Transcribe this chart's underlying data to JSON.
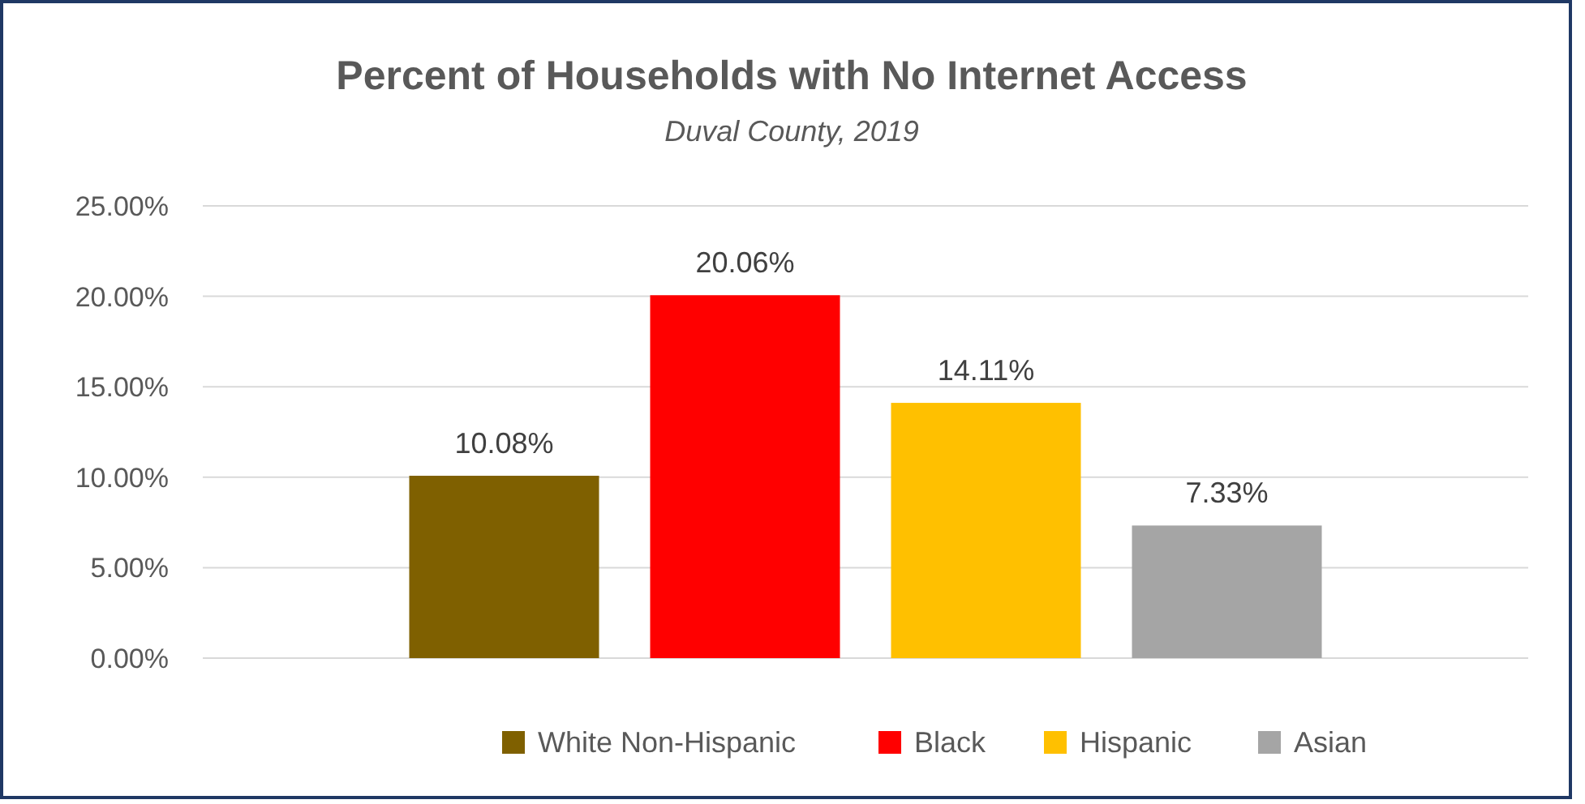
{
  "chart_data": {
    "type": "bar",
    "title": "Percent of Households with No Internet Access",
    "subtitle": "Duval County, 2019",
    "categories": [
      null
    ],
    "series": [
      {
        "name": "White Non-Hispanic",
        "color": "#7f6000",
        "values": [
          10.08
        ],
        "value_labels": [
          "10.08%"
        ]
      },
      {
        "name": "Black",
        "color": "#ff0000",
        "values": [
          20.06
        ],
        "value_labels": [
          "20.06%"
        ]
      },
      {
        "name": "Hispanic",
        "color": "#ffc000",
        "values": [
          14.11
        ],
        "value_labels": [
          "14.11%"
        ]
      },
      {
        "name": "Asian",
        "color": "#a5a5a5",
        "values": [
          7.33
        ],
        "value_labels": [
          "7.33%"
        ]
      }
    ],
    "ylim": [
      0,
      25
    ],
    "yticks": [
      {
        "value": 0,
        "label": "0.00%"
      },
      {
        "value": 5,
        "label": "5.00%"
      },
      {
        "value": 10,
        "label": "10.00%"
      },
      {
        "value": 15,
        "label": "15.00%"
      },
      {
        "value": 20,
        "label": "20.00%"
      },
      {
        "value": 25,
        "label": "25.00%"
      }
    ],
    "grid": "y",
    "legend": "bottom"
  }
}
